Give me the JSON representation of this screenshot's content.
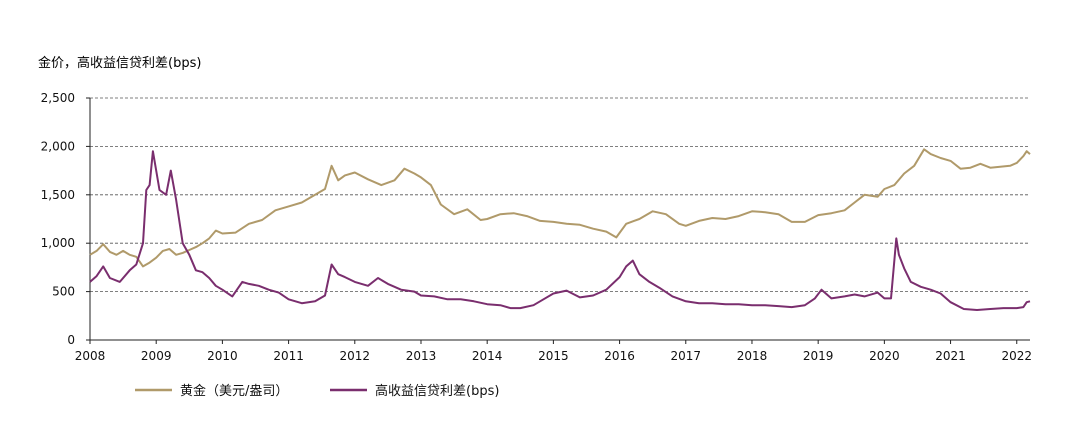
{
  "chart_data": {
    "type": "line",
    "title": "",
    "ylabel": "金价，高收益信贷利差(bps)",
    "xlabel": "",
    "xlim": [
      2008.0,
      2022.2
    ],
    "ylim": [
      0,
      2500
    ],
    "y_ticks": [
      "0",
      "500",
      "1,000",
      "1,500",
      "2,000",
      "2,500"
    ],
    "y_tick_values": [
      0,
      500,
      1000,
      1500,
      2000,
      2500
    ],
    "x_ticks": [
      "2008",
      "2009",
      "2010",
      "2011",
      "2012",
      "2013",
      "2014",
      "2015",
      "2016",
      "2017",
      "2018",
      "2019",
      "2020",
      "2021",
      "2022"
    ],
    "x_tick_values": [
      2008,
      2009,
      2010,
      2011,
      2012,
      2013,
      2014,
      2015,
      2016,
      2017,
      2018,
      2019,
      2020,
      2021,
      2022
    ],
    "grid": true,
    "legend_position": "bottom",
    "series": [
      {
        "name": "黄金（美元/盎司）",
        "color": "#b09a6a",
        "x": [
          2008.0,
          2008.1,
          2008.2,
          2008.3,
          2008.4,
          2008.5,
          2008.6,
          2008.7,
          2008.8,
          2008.9,
          2009.0,
          2009.1,
          2009.2,
          2009.3,
          2009.4,
          2009.5,
          2009.6,
          2009.7,
          2009.8,
          2009.9,
          2010.0,
          2010.2,
          2010.4,
          2010.6,
          2010.8,
          2011.0,
          2011.2,
          2011.4,
          2011.55,
          2011.65,
          2011.75,
          2011.85,
          2012.0,
          2012.2,
          2012.4,
          2012.6,
          2012.75,
          2012.9,
          2013.0,
          2013.15,
          2013.3,
          2013.5,
          2013.7,
          2013.9,
          2014.0,
          2014.2,
          2014.4,
          2014.6,
          2014.8,
          2015.0,
          2015.2,
          2015.4,
          2015.6,
          2015.8,
          2015.95,
          2016.1,
          2016.3,
          2016.5,
          2016.7,
          2016.9,
          2017.0,
          2017.2,
          2017.4,
          2017.6,
          2017.8,
          2018.0,
          2018.2,
          2018.4,
          2018.6,
          2018.8,
          2019.0,
          2019.2,
          2019.4,
          2019.55,
          2019.7,
          2019.9,
          2020.0,
          2020.15,
          2020.3,
          2020.45,
          2020.6,
          2020.7,
          2020.85,
          2021.0,
          2021.15,
          2021.3,
          2021.45,
          2021.6,
          2021.75,
          2021.9,
          2022.0,
          2022.1,
          2022.15,
          2022.2
        ],
        "values": [
          880,
          920,
          990,
          910,
          880,
          920,
          880,
          860,
          760,
          800,
          850,
          920,
          940,
          880,
          900,
          930,
          960,
          1000,
          1050,
          1130,
          1100,
          1110,
          1200,
          1240,
          1340,
          1380,
          1420,
          1500,
          1560,
          1800,
          1650,
          1700,
          1730,
          1660,
          1600,
          1650,
          1770,
          1720,
          1680,
          1600,
          1400,
          1300,
          1350,
          1240,
          1250,
          1300,
          1310,
          1280,
          1230,
          1220,
          1200,
          1190,
          1150,
          1120,
          1060,
          1200,
          1250,
          1330,
          1300,
          1200,
          1180,
          1230,
          1260,
          1250,
          1280,
          1330,
          1320,
          1300,
          1220,
          1220,
          1290,
          1310,
          1340,
          1420,
          1500,
          1480,
          1560,
          1600,
          1720,
          1800,
          1970,
          1920,
          1880,
          1850,
          1770,
          1780,
          1820,
          1780,
          1790,
          1800,
          1830,
          1900,
          1950,
          1920
        ]
      },
      {
        "name": "高收益信贷利差(bps)",
        "color": "#7a2e6e",
        "x": [
          2008.0,
          2008.1,
          2008.2,
          2008.3,
          2008.45,
          2008.6,
          2008.7,
          2008.8,
          2008.85,
          2008.9,
          2008.95,
          2009.05,
          2009.15,
          2009.22,
          2009.3,
          2009.4,
          2009.5,
          2009.6,
          2009.7,
          2009.8,
          2009.9,
          2010.0,
          2010.15,
          2010.3,
          2010.4,
          2010.55,
          2010.7,
          2010.85,
          2011.0,
          2011.2,
          2011.4,
          2011.55,
          2011.65,
          2011.75,
          2011.85,
          2012.0,
          2012.2,
          2012.35,
          2012.5,
          2012.7,
          2012.9,
          2013.0,
          2013.2,
          2013.4,
          2013.6,
          2013.8,
          2014.0,
          2014.2,
          2014.35,
          2014.5,
          2014.7,
          2014.85,
          2015.0,
          2015.2,
          2015.4,
          2015.6,
          2015.8,
          2016.0,
          2016.1,
          2016.2,
          2016.3,
          2016.45,
          2016.6,
          2016.8,
          2017.0,
          2017.2,
          2017.4,
          2017.6,
          2017.8,
          2018.0,
          2018.2,
          2018.4,
          2018.6,
          2018.8,
          2018.95,
          2019.05,
          2019.2,
          2019.4,
          2019.55,
          2019.7,
          2019.9,
          2020.0,
          2020.1,
          2020.18,
          2020.22,
          2020.3,
          2020.4,
          2020.55,
          2020.7,
          2020.85,
          2021.0,
          2021.2,
          2021.4,
          2021.6,
          2021.8,
          2022.0,
          2022.1,
          2022.15,
          2022.2
        ],
        "values": [
          600,
          660,
          760,
          640,
          600,
          720,
          780,
          1000,
          1550,
          1600,
          1950,
          1550,
          1500,
          1750,
          1450,
          1000,
          880,
          720,
          700,
          640,
          560,
          520,
          450,
          600,
          580,
          560,
          520,
          490,
          420,
          380,
          400,
          460,
          780,
          680,
          650,
          600,
          560,
          640,
          580,
          520,
          500,
          460,
          450,
          420,
          420,
          400,
          370,
          360,
          330,
          330,
          360,
          420,
          480,
          510,
          440,
          460,
          520,
          650,
          760,
          820,
          680,
          600,
          540,
          450,
          400,
          380,
          380,
          370,
          370,
          360,
          360,
          350,
          340,
          360,
          430,
          520,
          430,
          450,
          470,
          450,
          490,
          430,
          430,
          1050,
          880,
          740,
          600,
          550,
          520,
          480,
          390,
          320,
          310,
          320,
          330,
          330,
          340,
          390,
          400
        ]
      }
    ]
  }
}
